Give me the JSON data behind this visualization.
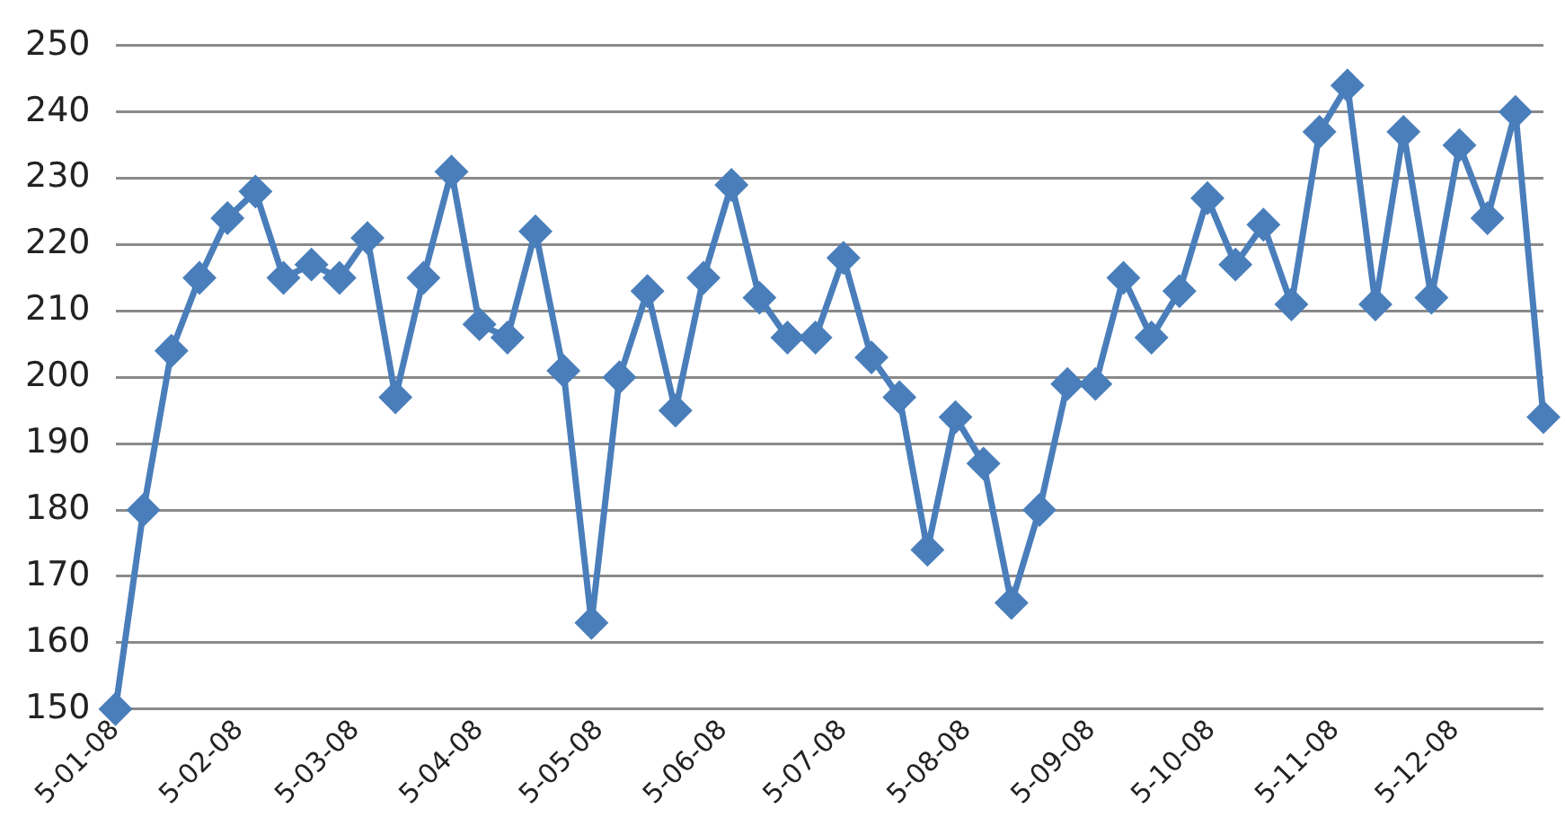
{
  "chart_data": {
    "type": "line",
    "x": [
      "2008-01-05",
      "2008-01-12",
      "2008-01-19",
      "2008-01-26",
      "2008-02-02",
      "2008-02-09",
      "2008-02-16",
      "2008-02-23",
      "2008-03-01",
      "2008-03-08",
      "2008-03-15",
      "2008-03-22",
      "2008-03-29",
      "2008-04-05",
      "2008-04-12",
      "2008-04-19",
      "2008-04-26",
      "2008-05-03",
      "2008-05-10",
      "2008-05-17",
      "2008-05-24",
      "2008-05-31",
      "2008-06-07",
      "2008-06-14",
      "2008-06-21",
      "2008-06-28",
      "2008-07-05",
      "2008-07-12",
      "2008-07-19",
      "2008-07-26",
      "2008-08-02",
      "2008-08-09",
      "2008-08-16",
      "2008-08-23",
      "2008-08-30",
      "2008-09-06",
      "2008-09-13",
      "2008-09-20",
      "2008-09-27",
      "2008-10-04",
      "2008-10-11",
      "2008-10-18",
      "2008-10-25",
      "2008-11-01",
      "2008-11-08",
      "2008-11-15",
      "2008-11-22",
      "2008-11-29",
      "2008-12-06",
      "2008-12-13",
      "2008-12-20",
      "2008-12-27"
    ],
    "series": [
      {
        "color": "#4a7ebb",
        "values": [
          150,
          180,
          204,
          215,
          224,
          228,
          215,
          217,
          215,
          221,
          197,
          215,
          231,
          208,
          206,
          222,
          201,
          163,
          200,
          213,
          195,
          215,
          229,
          212,
          206,
          206,
          218,
          203,
          197,
          174,
          194,
          187,
          166,
          180,
          199,
          199,
          215,
          206,
          213,
          227,
          217,
          223,
          211,
          237,
          244,
          211,
          237,
          212,
          235,
          224,
          240,
          194
        ]
      }
    ],
    "xlim": [
      "2008-01-05",
      "2008-12-27"
    ],
    "xticks": [
      {
        "value": "2008-01-05",
        "label": "5-01-08"
      },
      {
        "value": "2008-02-05",
        "label": "5-02-08"
      },
      {
        "value": "2008-03-05",
        "label": "5-03-08"
      },
      {
        "value": "2008-04-05",
        "label": "5-04-08"
      },
      {
        "value": "2008-05-05",
        "label": "5-05-08"
      },
      {
        "value": "2008-06-05",
        "label": "5-06-08"
      },
      {
        "value": "2008-07-05",
        "label": "5-07-08"
      },
      {
        "value": "2008-08-05",
        "label": "5-08-08"
      },
      {
        "value": "2008-09-05",
        "label": "5-09-08"
      },
      {
        "value": "2008-10-05",
        "label": "5-10-08"
      },
      {
        "value": "2008-11-05",
        "label": "5-11-08"
      },
      {
        "value": "2008-12-05",
        "label": "5-12-08"
      }
    ],
    "ylim": [
      150,
      250
    ],
    "yticks": [
      150,
      160,
      170,
      180,
      190,
      200,
      210,
      220,
      230,
      240,
      250
    ],
    "grid": "y",
    "marker": "diamond",
    "line_style": "solid"
  }
}
